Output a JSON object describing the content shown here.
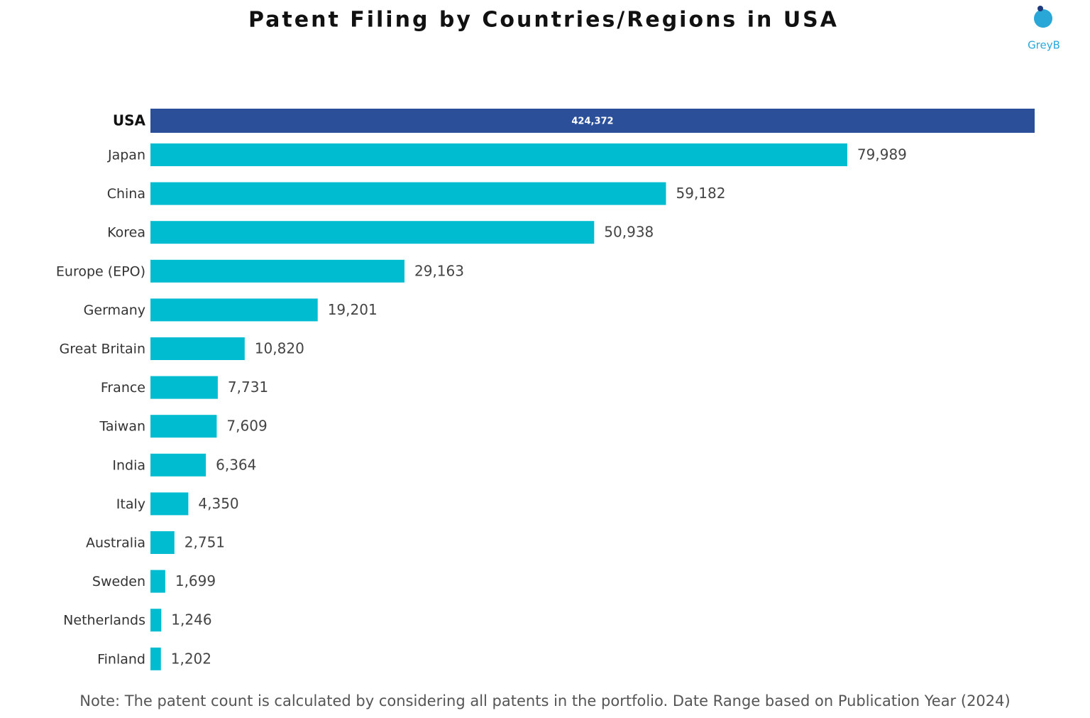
{
  "chart_data": {
    "type": "bar",
    "orientation": "horizontal",
    "title": "Patent Filing by Countries/Regions in USA",
    "logo": "GreyB",
    "note": "Note: The patent count is calculated by considering all patents in the portfolio. Date Range based on Publication Year (2024)",
    "categories": [
      "USA",
      "Japan",
      "China",
      "Korea",
      "Europe (EPO)",
      "Germany",
      "Great Britain",
      "France",
      "Taiwan",
      "India",
      "Italy",
      "Australia",
      "Sweden",
      "Netherlands",
      "Finland"
    ],
    "values": [
      424372,
      79989,
      59182,
      50938,
      29163,
      19201,
      10820,
      7731,
      7609,
      6364,
      4350,
      2751,
      1699,
      1246,
      1202
    ],
    "value_labels": [
      "424,372",
      "79,989",
      "59,182",
      "50,938",
      "29,163",
      "19,201",
      "10,820",
      "7,731",
      "7,609",
      "6,364",
      "4,350",
      "2,751",
      "1,699",
      "1,246",
      "1,202"
    ],
    "colors": [
      "#2b4f99",
      "#00bcd0",
      "#00bcd0",
      "#00bcd0",
      "#00bcd0",
      "#00bcd0",
      "#00bcd0",
      "#00bcd0",
      "#00bcd0",
      "#00bcd0",
      "#00bcd0",
      "#00bcd0",
      "#00bcd0",
      "#00bcd0",
      "#00bcd0"
    ],
    "xlim": [
      0,
      101500
    ]
  }
}
